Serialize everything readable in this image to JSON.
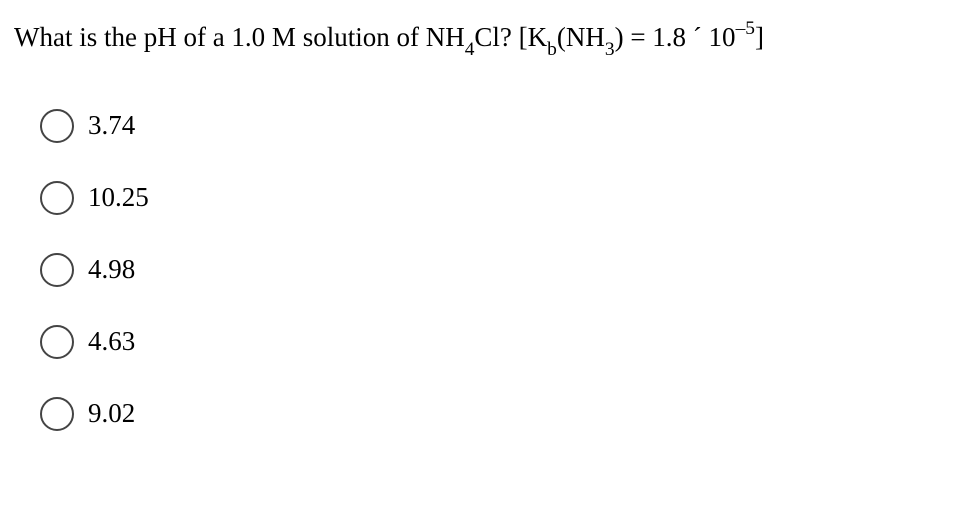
{
  "question": {
    "prefix": "What is the pH of a 1.0 M solution of NH",
    "sub1": "4",
    "mid1": "Cl?  [K",
    "sub2": "b",
    "mid2": "(NH",
    "sub3": "3",
    "mid3": ") = 1.8 ´ 10",
    "sup1": "–5",
    "suffix": "]"
  },
  "options": [
    {
      "label": "3.74"
    },
    {
      "label": "10.25"
    },
    {
      "label": "4.98"
    },
    {
      "label": "4.63"
    },
    {
      "label": "9.02"
    }
  ],
  "colors": {
    "text": "#000000",
    "background": "#ffffff",
    "radio_border": "#444444"
  }
}
